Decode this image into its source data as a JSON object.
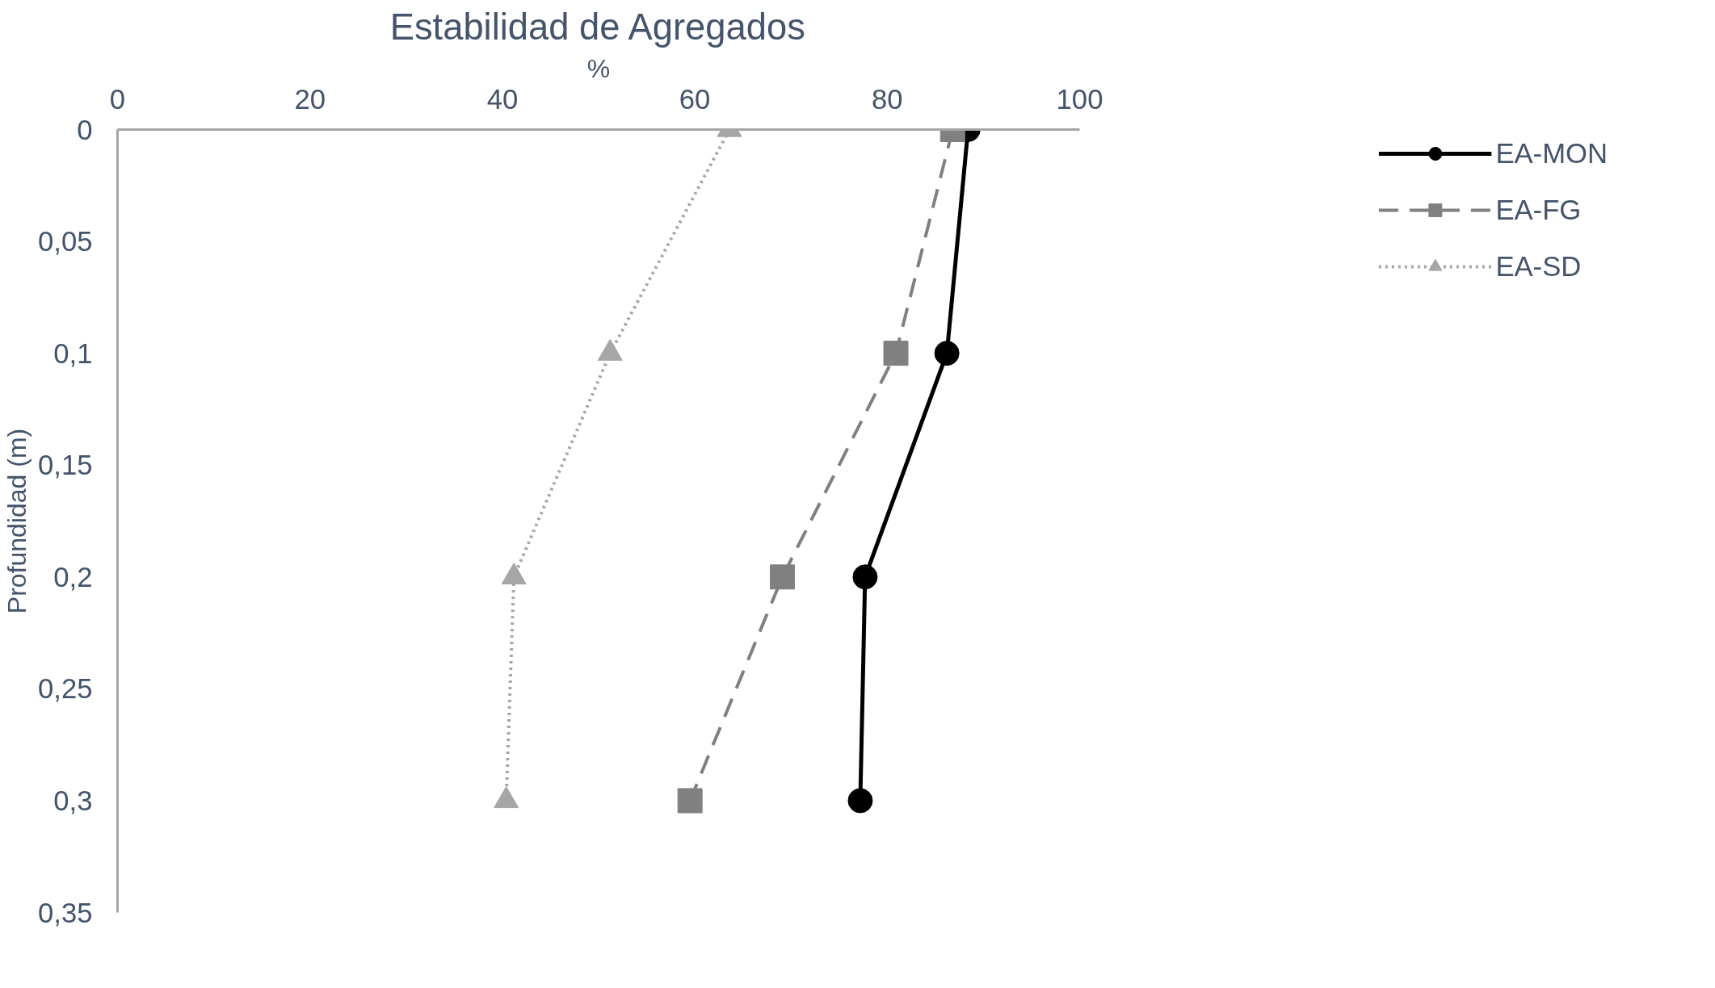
{
  "chart_data": {
    "type": "line",
    "title": "Estabilidad de Agregados",
    "xlabel": "%",
    "ylabel": "Profundidad (m)",
    "xlim": [
      0,
      100
    ],
    "xticks": [
      0,
      20,
      40,
      60,
      80,
      100
    ],
    "ylim": [
      0.35,
      0
    ],
    "yticks": [
      0,
      {
        "value": 0.05,
        "label": "0,05"
      },
      {
        "value": 0.1,
        "label": "0,1"
      },
      {
        "value": 0.15,
        "label": "0,15"
      },
      {
        "value": 0.2,
        "label": "0,2"
      },
      {
        "value": 0.25,
        "label": "0,25"
      },
      {
        "value": 0.3,
        "label": "0,3"
      },
      {
        "value": 0.35,
        "label": "0,35"
      }
    ],
    "grid": false,
    "legend": "right",
    "series": [
      {
        "name": "EA-MON",
        "color": "#000000",
        "marker": "circle",
        "line_style": "solid",
        "x": [
          88.4,
          86.2,
          77.7,
          77.2
        ],
        "values": [
          0,
          0.1,
          0.2,
          0.3
        ]
      },
      {
        "name": "EA-FG",
        "color": "#808080",
        "marker": "square",
        "line_style": "dashed",
        "x": [
          86.8,
          80.9,
          69.1,
          59.5
        ],
        "values": [
          0,
          0.1,
          0.2,
          0.3
        ]
      },
      {
        "name": "EA-SD",
        "color": "#a6a6a6",
        "marker": "triangle",
        "line_style": "dotted",
        "x": [
          63.6,
          51.2,
          41.2,
          40.4
        ],
        "values": [
          0,
          0.1,
          0.2,
          0.3
        ]
      }
    ]
  }
}
